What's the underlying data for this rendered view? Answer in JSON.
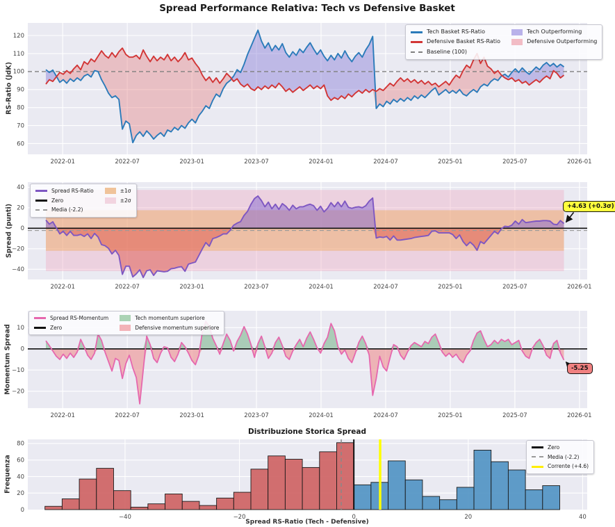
{
  "figure": {
    "title": "Spread Performance Relativa: Tech vs Defensive Basket",
    "background": "#ffffff",
    "panel_background": "#eaeaf2",
    "grid_color": "#ffffff"
  },
  "chart_data": [
    {
      "id": "rs_ratio",
      "type": "line",
      "title": "",
      "xlabel": "",
      "ylabel": "RS-Ratio (JdK)",
      "xlim": [
        2021.73,
        2026.06
      ],
      "ylim": [
        54,
        127
      ],
      "x_ticks": {
        "values": [
          2022.0,
          2022.5,
          2023.0,
          2023.5,
          2024.0,
          2024.5,
          2025.0,
          2025.5,
          2026.0
        ],
        "labels": [
          "2022-01",
          "2022-07",
          "2023-01",
          "2023-07",
          "2024-01",
          "2024-07",
          "2025-01",
          "2025-07",
          "2026-01"
        ]
      },
      "y_ticks": {
        "values": [
          60,
          70,
          80,
          90,
          100,
          110,
          120
        ],
        "labels": [
          "60",
          "70",
          "80",
          "90",
          "100",
          "110",
          "120"
        ]
      },
      "x_start": 2021.87,
      "x_end": 2025.88,
      "n_points": 150,
      "baseline": {
        "label": "Baseline (100)",
        "value": 100,
        "color": "#7f7f7f"
      },
      "fill_tech_color": "#8a7fd6",
      "fill_def_color": "#e57f7f",
      "series": [
        {
          "name": "Tech Basket RS-Ratio",
          "color": "#2b7bba",
          "values": [
            101.0,
            99.5,
            100.8,
            97.5,
            94.0,
            95.5,
            93.5,
            96.0,
            94.5,
            96.5,
            95.0,
            97.5,
            98.5,
            97.0,
            100.5,
            100.0,
            95.5,
            92.0,
            88.0,
            85.5,
            86.5,
            84.5,
            68.0,
            72.5,
            71.0,
            60.5,
            64.5,
            66.5,
            64.0,
            67.0,
            65.0,
            62.5,
            64.5,
            66.0,
            64.0,
            67.5,
            66.5,
            69.0,
            67.5,
            70.0,
            68.5,
            71.5,
            73.5,
            71.5,
            75.5,
            78.0,
            81.0,
            79.5,
            84.0,
            87.5,
            86.0,
            90.5,
            93.5,
            95.0,
            97.5,
            101.0,
            99.5,
            104.0,
            109.5,
            114.0,
            118.5,
            123.0,
            117.0,
            113.0,
            116.0,
            111.5,
            114.5,
            112.0,
            115.5,
            110.5,
            108.0,
            111.0,
            109.0,
            112.5,
            110.5,
            113.5,
            116.0,
            112.5,
            109.5,
            112.0,
            108.5,
            106.0,
            109.0,
            106.5,
            110.0,
            107.5,
            111.5,
            108.0,
            105.5,
            108.5,
            110.5,
            108.0,
            112.0,
            115.0,
            119.5,
            79.5,
            82.0,
            80.5,
            83.5,
            82.0,
            84.5,
            83.0,
            85.0,
            83.5,
            85.5,
            84.0,
            86.5,
            85.0,
            87.0,
            85.5,
            87.5,
            89.5,
            91.0,
            87.0,
            88.5,
            90.0,
            88.0,
            89.5,
            88.0,
            90.0,
            87.5,
            86.5,
            88.5,
            90.0,
            88.5,
            91.5,
            93.0,
            92.0,
            94.5,
            96.0,
            95.0,
            97.5,
            98.5,
            97.0,
            99.5,
            101.5,
            99.5,
            102.0,
            100.0,
            98.5,
            100.5,
            102.5,
            101.0,
            103.5,
            105.0,
            103.0,
            104.5,
            102.5,
            104.0,
            102.6
          ]
        },
        {
          "name": "Defensive Basket RS-Ratio",
          "color": "#d23535",
          "values": [
            93.0,
            95.5,
            94.5,
            97.0,
            99.5,
            98.5,
            100.5,
            99.0,
            101.5,
            103.5,
            101.0,
            105.5,
            104.0,
            107.0,
            105.5,
            108.5,
            111.5,
            109.0,
            107.5,
            110.5,
            108.0,
            111.0,
            113.0,
            109.5,
            108.0,
            108.0,
            109.0,
            107.0,
            112.0,
            108.5,
            105.5,
            108.5,
            106.0,
            108.0,
            106.5,
            109.5,
            106.0,
            108.0,
            105.5,
            107.5,
            110.5,
            106.5,
            107.5,
            104.5,
            102.0,
            98.0,
            95.0,
            97.0,
            94.0,
            96.5,
            93.5,
            96.0,
            99.0,
            97.0,
            94.5,
            96.0,
            93.0,
            91.5,
            93.0,
            90.5,
            89.5,
            91.5,
            90.0,
            92.0,
            90.5,
            92.5,
            91.0,
            93.5,
            91.5,
            89.0,
            90.5,
            88.5,
            90.0,
            91.5,
            89.5,
            91.0,
            92.5,
            90.5,
            92.0,
            90.5,
            92.5,
            86.5,
            84.0,
            85.5,
            84.5,
            86.5,
            85.0,
            87.5,
            86.0,
            88.0,
            89.5,
            88.0,
            90.0,
            88.5,
            90.0,
            89.0,
            90.5,
            89.5,
            91.5,
            93.5,
            92.0,
            94.5,
            96.5,
            94.5,
            96.0,
            94.0,
            95.5,
            93.5,
            95.0,
            93.0,
            94.5,
            92.5,
            93.5,
            91.5,
            93.0,
            94.5,
            92.5,
            95.5,
            98.0,
            96.5,
            100.5,
            103.5,
            102.0,
            106.5,
            110.0,
            104.5,
            108.0,
            103.0,
            101.5,
            99.0,
            100.5,
            98.0,
            96.5,
            95.5,
            96.5,
            94.5,
            95.5,
            93.5,
            94.5,
            92.5,
            94.0,
            95.5,
            94.0,
            96.0,
            97.5,
            96.0,
            100.5,
            99.0,
            96.5,
            98.0
          ]
        }
      ],
      "legend": {
        "rows": 3,
        "items": [
          {
            "label": "Tech Basket RS-Ratio",
            "swatch": "line",
            "color": "#2b7bba"
          },
          {
            "label": "Defensive Basket RS-Ratio",
            "swatch": "line",
            "color": "#d23535"
          },
          {
            "label": "Baseline (100)",
            "swatch": "dash",
            "color": "#7f7f7f"
          },
          {
            "label": "Tech Outperforming",
            "swatch": "patch",
            "color": "#b9b2ea"
          },
          {
            "label": "Defensive Outperforming",
            "swatch": "patch",
            "color": "#f2bcc5"
          }
        ]
      }
    },
    {
      "id": "spread",
      "type": "area",
      "title": "",
      "xlabel": "",
      "ylabel": "Spread (punti)",
      "xlim": [
        2021.73,
        2026.06
      ],
      "ylim": [
        -50,
        45
      ],
      "x_ticks": {
        "values": [
          2022.0,
          2022.5,
          2023.0,
          2023.5,
          2024.0,
          2024.5,
          2025.0,
          2025.5,
          2026.0
        ],
        "labels": [
          "2022-01",
          "2022-07",
          "2023-01",
          "2023-07",
          "2024-01",
          "2024-07",
          "2025-01",
          "2025-07",
          "2026-01"
        ]
      },
      "y_ticks": {
        "values": [
          -40,
          -20,
          0,
          20,
          40
        ],
        "labels": [
          "−40",
          "−20",
          "0",
          "20",
          "40"
        ]
      },
      "derived_from": "rs_ratio: Tech minus Defensive",
      "line_color": "#7e57c2",
      "mean": -2.2,
      "sigma": 19.8,
      "band1_color": "#f0a860",
      "band2_color": "#f0a8c0",
      "fill_positive_color": "#8d6fd0",
      "fill_negative_color": "#e06055",
      "annotation": {
        "text": "+4.63 (+0.3σ)",
        "x": 2025.88,
        "y": 4.63,
        "box_color": "#ffff3d"
      },
      "legend": {
        "rows": 3,
        "items": [
          {
            "label": "Spread RS-Ratio",
            "swatch": "line",
            "color": "#7e57c2"
          },
          {
            "label": "Zero",
            "swatch": "line",
            "color": "#111111"
          },
          {
            "label": "Media (-2.2)",
            "swatch": "dash",
            "color": "#999999"
          },
          {
            "label": "±1σ",
            "swatch": "patch",
            "color": "#f0c39a"
          },
          {
            "label": "±2σ",
            "swatch": "patch",
            "color": "#f2d4e0"
          }
        ]
      }
    },
    {
      "id": "momentum",
      "type": "area",
      "title": "",
      "xlabel": "",
      "ylabel": "Momentum Spread",
      "xlim": [
        2021.73,
        2026.06
      ],
      "ylim": [
        -28,
        18
      ],
      "x_ticks": {
        "values": [
          2022.0,
          2022.5,
          2023.0,
          2023.5,
          2024.0,
          2024.5,
          2025.0,
          2025.5,
          2026.0
        ],
        "labels": [
          "2022-01",
          "2022-07",
          "2023-01",
          "2023-07",
          "2024-01",
          "2024-07",
          "2025-01",
          "2025-07",
          "2026-01"
        ]
      },
      "y_ticks": {
        "values": [
          -20,
          -10,
          0,
          10
        ],
        "labels": [
          "−20",
          "−10",
          "0",
          "10"
        ]
      },
      "x_start": 2021.87,
      "x_end": 2025.88,
      "n_points": 150,
      "line_color": "#e667ae",
      "fill_positive_color": "#74b386",
      "fill_negative_color": "#ee8585",
      "annotation": {
        "text": "-5.25",
        "x": 2025.88,
        "y": -5.25,
        "box_color": "#f08080"
      },
      "values": [
        3.8,
        1.5,
        -1.0,
        -3.5,
        -5.0,
        -2.5,
        -4.5,
        -2.0,
        -4.0,
        -1.5,
        4.5,
        1.0,
        -3.0,
        -5.0,
        -2.0,
        7.0,
        4.0,
        -1.5,
        -6.0,
        -10.5,
        -4.5,
        -5.5,
        -14.0,
        -7.0,
        -3.0,
        -9.0,
        -13.5,
        -26.0,
        -10.0,
        6.0,
        2.0,
        -4.5,
        -6.5,
        -2.0,
        1.0,
        0.5,
        -4.0,
        -6.0,
        -2.5,
        3.0,
        1.0,
        -2.0,
        -5.5,
        -7.5,
        -3.0,
        8.0,
        13.0,
        10.5,
        5.0,
        1.5,
        -2.5,
        2.5,
        7.0,
        4.0,
        -1.0,
        3.5,
        6.5,
        10.5,
        7.0,
        2.0,
        -4.0,
        2.5,
        6.0,
        1.0,
        -4.5,
        -2.0,
        3.0,
        5.5,
        1.5,
        -3.5,
        -5.0,
        -1.0,
        2.0,
        4.5,
        1.0,
        5.0,
        8.0,
        4.5,
        0.5,
        -2.0,
        2.5,
        5.5,
        12.0,
        8.5,
        1.0,
        -2.5,
        -0.5,
        -4.5,
        -6.5,
        -2.0,
        3.0,
        6.0,
        2.5,
        -3.0,
        -22.0,
        -14.0,
        -3.5,
        -8.5,
        -10.5,
        -4.0,
        2.0,
        1.0,
        -3.0,
        -5.0,
        -1.5,
        1.5,
        3.0,
        2.0,
        1.0,
        3.5,
        2.5,
        5.5,
        7.0,
        3.0,
        -1.5,
        -3.5,
        -2.0,
        -4.0,
        -2.5,
        -5.0,
        -6.5,
        -3.0,
        -1.0,
        4.0,
        7.5,
        8.5,
        4.5,
        1.0,
        2.0,
        4.0,
        2.5,
        4.5,
        3.5,
        4.5,
        2.0,
        3.0,
        4.0,
        -1.0,
        -3.5,
        -4.5,
        0.5,
        3.0,
        4.5,
        1.5,
        -3.0,
        -4.5,
        2.5,
        4.0,
        -2.0,
        -5.25
      ],
      "legend": {
        "rows": 2,
        "items": [
          {
            "label": "Spread RS-Momentum",
            "swatch": "line",
            "color": "#e667ae"
          },
          {
            "label": "Zero",
            "swatch": "line",
            "color": "#111111"
          },
          {
            "label": "Tech momentum superiore",
            "swatch": "patch",
            "color": "#abd3b5"
          },
          {
            "label": "Defensive momentum superiore",
            "swatch": "patch",
            "color": "#f3b3b8"
          }
        ]
      }
    },
    {
      "id": "histogram",
      "type": "bar",
      "title": "Distribuzione Storica Spread",
      "xlabel": "Spread RS-Ratio (Tech - Defensive)",
      "ylabel": "Frequenza",
      "xlim": [
        -57,
        40.8
      ],
      "ylim": [
        0,
        85
      ],
      "x_ticks": {
        "values": [
          -40,
          -20,
          0,
          20,
          40
        ],
        "labels": [
          "−40",
          "−20",
          "0",
          "20",
          "40"
        ]
      },
      "y_ticks": {
        "values": [
          0,
          20,
          40,
          60,
          80
        ],
        "labels": [
          "0",
          "20",
          "40",
          "60",
          "80"
        ]
      },
      "bins": {
        "start": -54,
        "width": 3
      },
      "series": [
        {
          "name": "spread negativo",
          "color": "#cd5c5c",
          "values": [
            4,
            13,
            37,
            50,
            23,
            3,
            7,
            19,
            10,
            5,
            14,
            21,
            49,
            65,
            61,
            51,
            70,
            81
          ]
        },
        {
          "name": "spread positivo",
          "color": "#4a8fc2",
          "values": [
            30,
            33,
            59,
            36,
            16,
            12,
            27,
            72,
            58,
            48,
            24,
            29
          ]
        }
      ],
      "vlines": [
        {
          "label": "Zero",
          "x": 0,
          "style": "solid",
          "color": "#111111",
          "width": 2
        },
        {
          "label": "Media (-2.2)",
          "x": -2.2,
          "style": "dashed",
          "color": "#888888",
          "width": 1.5
        },
        {
          "label": "Corrente (+4.6)",
          "x": 4.6,
          "style": "solid",
          "color": "#ffff00",
          "width": 3.5
        }
      ],
      "legend": {
        "rows": 3,
        "items": [
          {
            "label": "Zero",
            "swatch": "line",
            "color": "#111111"
          },
          {
            "label": "Media (-2.2)",
            "swatch": "dash",
            "color": "#999999"
          },
          {
            "label": "Corrente (+4.6)",
            "swatch": "line",
            "color": "#ffee00"
          }
        ]
      }
    }
  ]
}
